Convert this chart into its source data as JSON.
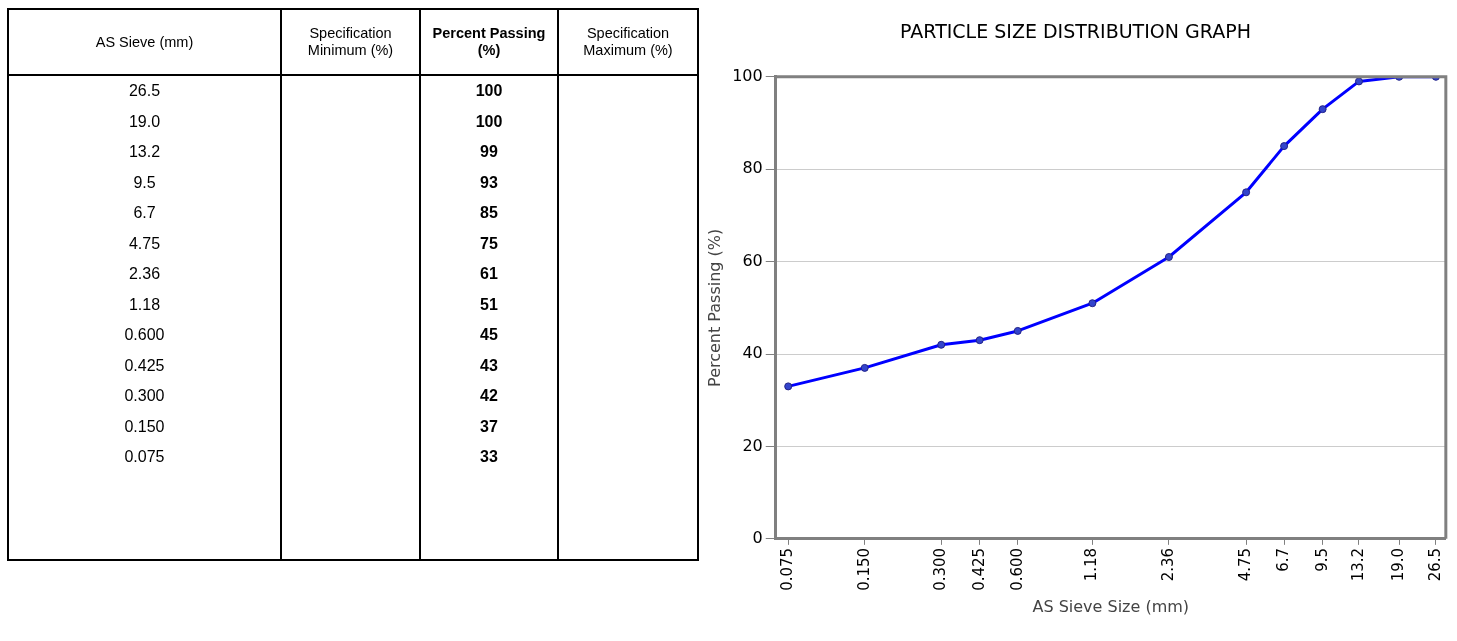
{
  "chart_data": [
    {
      "type": "other",
      "annotations": [
        "AS Sieve (mm)",
        "Specification Minimum (%)",
        "Percent Passing (%)",
        "Specification Maximum (%)"
      ],
      "categories": [
        "26.5",
        "19.0",
        "13.2",
        "9.5",
        "6.7",
        "4.75",
        "2.36",
        "1.18",
        "0.600",
        "0.425",
        "0.300",
        "0.150",
        "0.075"
      ],
      "values": [
        100,
        100,
        99,
        93,
        85,
        75,
        61,
        51,
        45,
        43,
        42,
        37,
        33
      ],
      "data_labels": true
    },
    {
      "type": "line",
      "title": "PARTICLE SIZE DISTRIBUTION GRAPH",
      "xlabel": "AS Sieve Size (mm)",
      "ylabel": "Percent Passing (%)",
      "x": [
        0.075,
        0.15,
        0.3,
        0.425,
        0.6,
        1.18,
        2.36,
        4.75,
        6.7,
        9.5,
        13.2,
        19.0,
        26.5
      ],
      "series": [
        {
          "color": "#0000ff",
          "values": [
            33,
            37,
            42,
            43,
            45,
            51,
            61,
            75,
            85,
            93,
            99,
            100,
            100
          ]
        }
      ],
      "log": "x",
      "xlim": [
        0.067,
        29
      ],
      "xticks": [
        {
          "value": 0.075,
          "label": "0.075"
        },
        {
          "value": 0.15,
          "label": "0.150"
        },
        {
          "value": 0.3,
          "label": "0.300"
        },
        {
          "value": 0.425,
          "label": "0.425"
        },
        {
          "value": 0.6,
          "label": "0.600"
        },
        {
          "value": 1.18,
          "label": "1.18"
        },
        {
          "value": 2.36,
          "label": "2.36"
        },
        {
          "value": 4.75,
          "label": "4.75"
        },
        {
          "value": 6.7,
          "label": "6.7"
        },
        {
          "value": 9.5,
          "label": "9.5"
        },
        {
          "value": 13.2,
          "label": "13.2"
        },
        {
          "value": 19.0,
          "label": "19.0"
        },
        {
          "value": 26.5,
          "label": "26.5"
        }
      ],
      "ylim": [
        0,
        100
      ],
      "yticks": [
        0,
        20,
        40,
        60,
        80,
        100
      ],
      "grid": "y",
      "legend": false,
      "marker": "circle",
      "line_style": "solid"
    }
  ]
}
